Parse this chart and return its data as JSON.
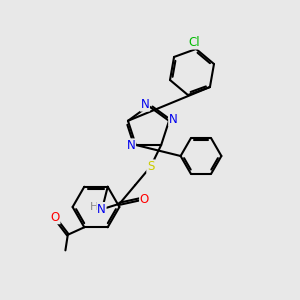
{
  "bg_color": "#e8e8e8",
  "bond_color": "#000000",
  "bond_width": 1.5,
  "atom_colors": {
    "N": "#0000ee",
    "S": "#cccc00",
    "O": "#ff0000",
    "Cl": "#00bb00",
    "H": "#888888",
    "C": "#000000"
  },
  "font_size": 8.5,
  "fig_size": [
    3.0,
    3.0
  ],
  "dpi": 100
}
